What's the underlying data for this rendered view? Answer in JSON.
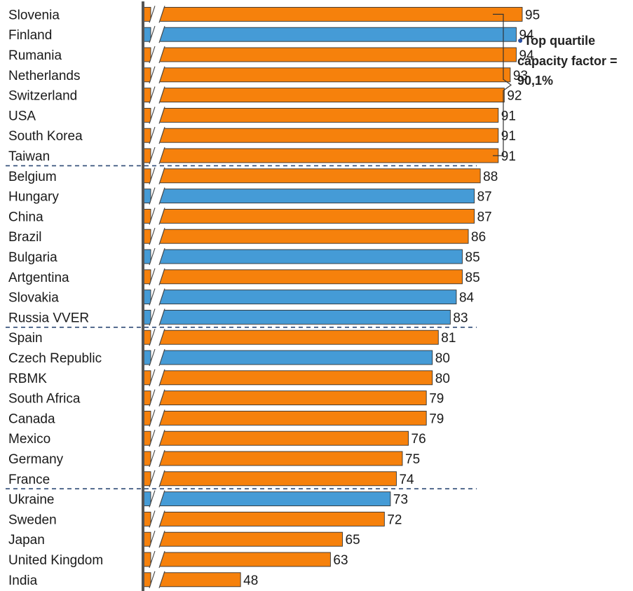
{
  "chart_data": {
    "type": "bar",
    "orientation": "horizontal",
    "axis_break": true,
    "categories": [
      "Slovenia",
      "Finland",
      "Rumania",
      "Netherlands",
      "Switzerland",
      "USA",
      "South Korea",
      "Taiwan",
      "Belgium",
      "Hungary",
      "China",
      "Brazil",
      "Bulgaria",
      "Artgentina",
      "Slovakia",
      "Russia VVER",
      "Spain",
      "Czech Republic",
      "RBMK",
      "South Africa",
      "Canada",
      "Mexico",
      "Germany",
      "France",
      "Ukraine",
      "Sweden",
      "Japan",
      "United Kingdom",
      "India"
    ],
    "values": [
      95,
      94,
      94,
      93,
      92,
      91,
      91,
      91,
      88,
      87,
      87,
      86,
      85,
      85,
      84,
      83,
      81,
      80,
      80,
      79,
      79,
      76,
      75,
      74,
      73,
      72,
      65,
      63,
      48
    ],
    "bar_colors": [
      "orange",
      "blue",
      "orange",
      "orange",
      "orange",
      "orange",
      "orange",
      "orange",
      "orange",
      "blue",
      "orange",
      "orange",
      "blue",
      "orange",
      "blue",
      "blue",
      "orange",
      "blue",
      "orange",
      "orange",
      "orange",
      "orange",
      "orange",
      "orange",
      "blue",
      "orange",
      "orange",
      "orange",
      "orange"
    ],
    "quartile_divider_after": [
      7,
      15,
      23
    ],
    "data_labels": true,
    "title": "",
    "xlabel": "",
    "ylabel": ""
  },
  "annotation": {
    "text": "Top quartile capacity factor = 90,1%",
    "bracket_rows": [
      0,
      7
    ]
  },
  "colors": {
    "orange": "#F6810C",
    "blue": "#459BD6",
    "axis": "#555555",
    "divider": "#2E4A76",
    "bullet": "#2B4FA0"
  }
}
